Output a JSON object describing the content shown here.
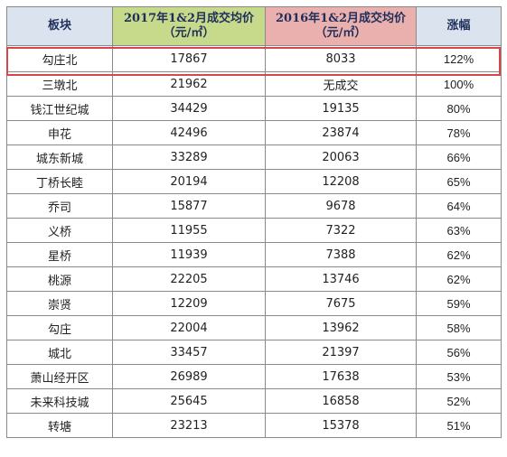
{
  "table": {
    "headers": [
      {
        "line1": "板块",
        "line2": ""
      },
      {
        "line1": "2017年1&2月成交均价",
        "line2": "（元/㎡）"
      },
      {
        "line1": "2016年1&2月成交均价",
        "line2": "（元/㎡）"
      },
      {
        "line1": "涨幅",
        "line2": ""
      }
    ],
    "rows": [
      {
        "name": "勾庄北",
        "p2017": "17867",
        "p2016": "8033",
        "rate": "122%",
        "highlighted": true
      },
      {
        "name": "三墩北",
        "p2017": "21962",
        "p2016": "无成交",
        "rate": "100%"
      },
      {
        "name": "钱江世纪城",
        "p2017": "34429",
        "p2016": "19135",
        "rate": "80%"
      },
      {
        "name": "申花",
        "p2017": "42496",
        "p2016": "23874",
        "rate": "78%"
      },
      {
        "name": "城东新城",
        "p2017": "33289",
        "p2016": "20063",
        "rate": "66%"
      },
      {
        "name": "丁桥长睦",
        "p2017": "20194",
        "p2016": "12208",
        "rate": "65%"
      },
      {
        "name": "乔司",
        "p2017": "15877",
        "p2016": "9678",
        "rate": "64%"
      },
      {
        "name": "义桥",
        "p2017": "11955",
        "p2016": "7322",
        "rate": "63%"
      },
      {
        "name": "星桥",
        "p2017": "11939",
        "p2016": "7388",
        "rate": "62%"
      },
      {
        "name": "桃源",
        "p2017": "22205",
        "p2016": "13746",
        "rate": "62%"
      },
      {
        "name": "崇贤",
        "p2017": "12209",
        "p2016": "7675",
        "rate": "59%"
      },
      {
        "name": "勾庄",
        "p2017": "22004",
        "p2016": "13962",
        "rate": "58%"
      },
      {
        "name": "城北",
        "p2017": "33457",
        "p2016": "21397",
        "rate": "56%"
      },
      {
        "name": "萧山经开区",
        "p2017": "26989",
        "p2016": "17638",
        "rate": "53%"
      },
      {
        "name": "未来科技城",
        "p2017": "25645",
        "p2016": "16858",
        "rate": "52%"
      },
      {
        "name": "转塘",
        "p2017": "23213",
        "p2016": "15378",
        "rate": "51%"
      }
    ]
  },
  "colors": {
    "header_blue": "#dbe3ee",
    "header_green": "#c7d98a",
    "header_pink": "#eab0ad",
    "header_text": "#1f2f5c",
    "rate_red": "#d43a3a",
    "highlight_border": "#d6464b"
  }
}
